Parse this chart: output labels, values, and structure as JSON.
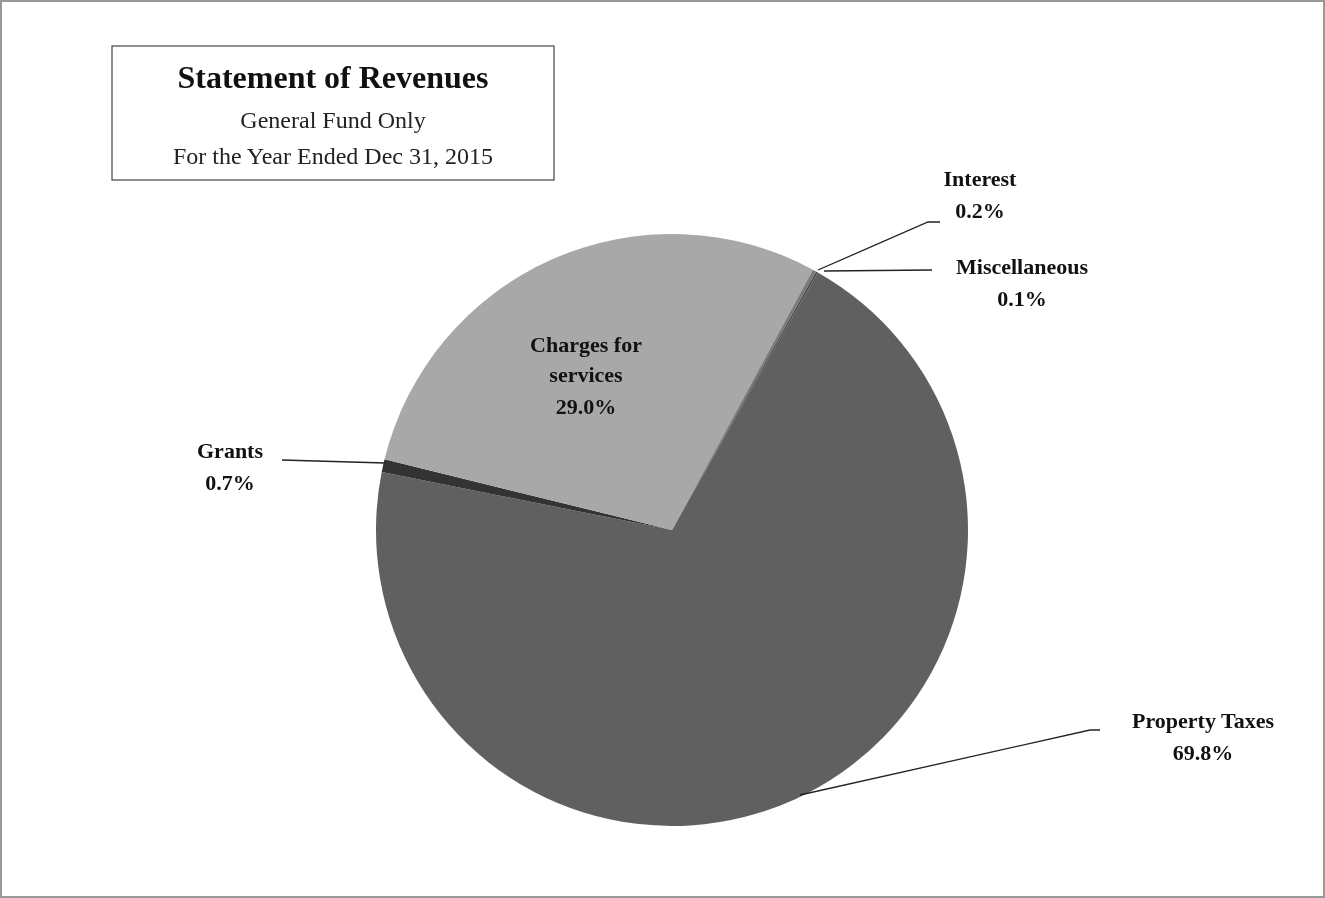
{
  "chart_data": {
    "type": "pie",
    "title": "Statement of Revenues",
    "subtitle": "General Fund Only",
    "annotations": [
      "For the Year Ended Dec 31, 2015"
    ],
    "categories": [
      "Property Taxes",
      "Grants",
      "Charges for services",
      "Interest",
      "Miscellaneous"
    ],
    "values": [
      69.8,
      0.7,
      29.0,
      0.2,
      0.1
    ],
    "value_labels": [
      "69.8%",
      "0.7%",
      "29.0%",
      "0.2%",
      "0.1%"
    ],
    "colors": [
      "#606060",
      "#333333",
      "#a8a8a8",
      "#7a7a7a",
      "#4a4a4a"
    ]
  }
}
